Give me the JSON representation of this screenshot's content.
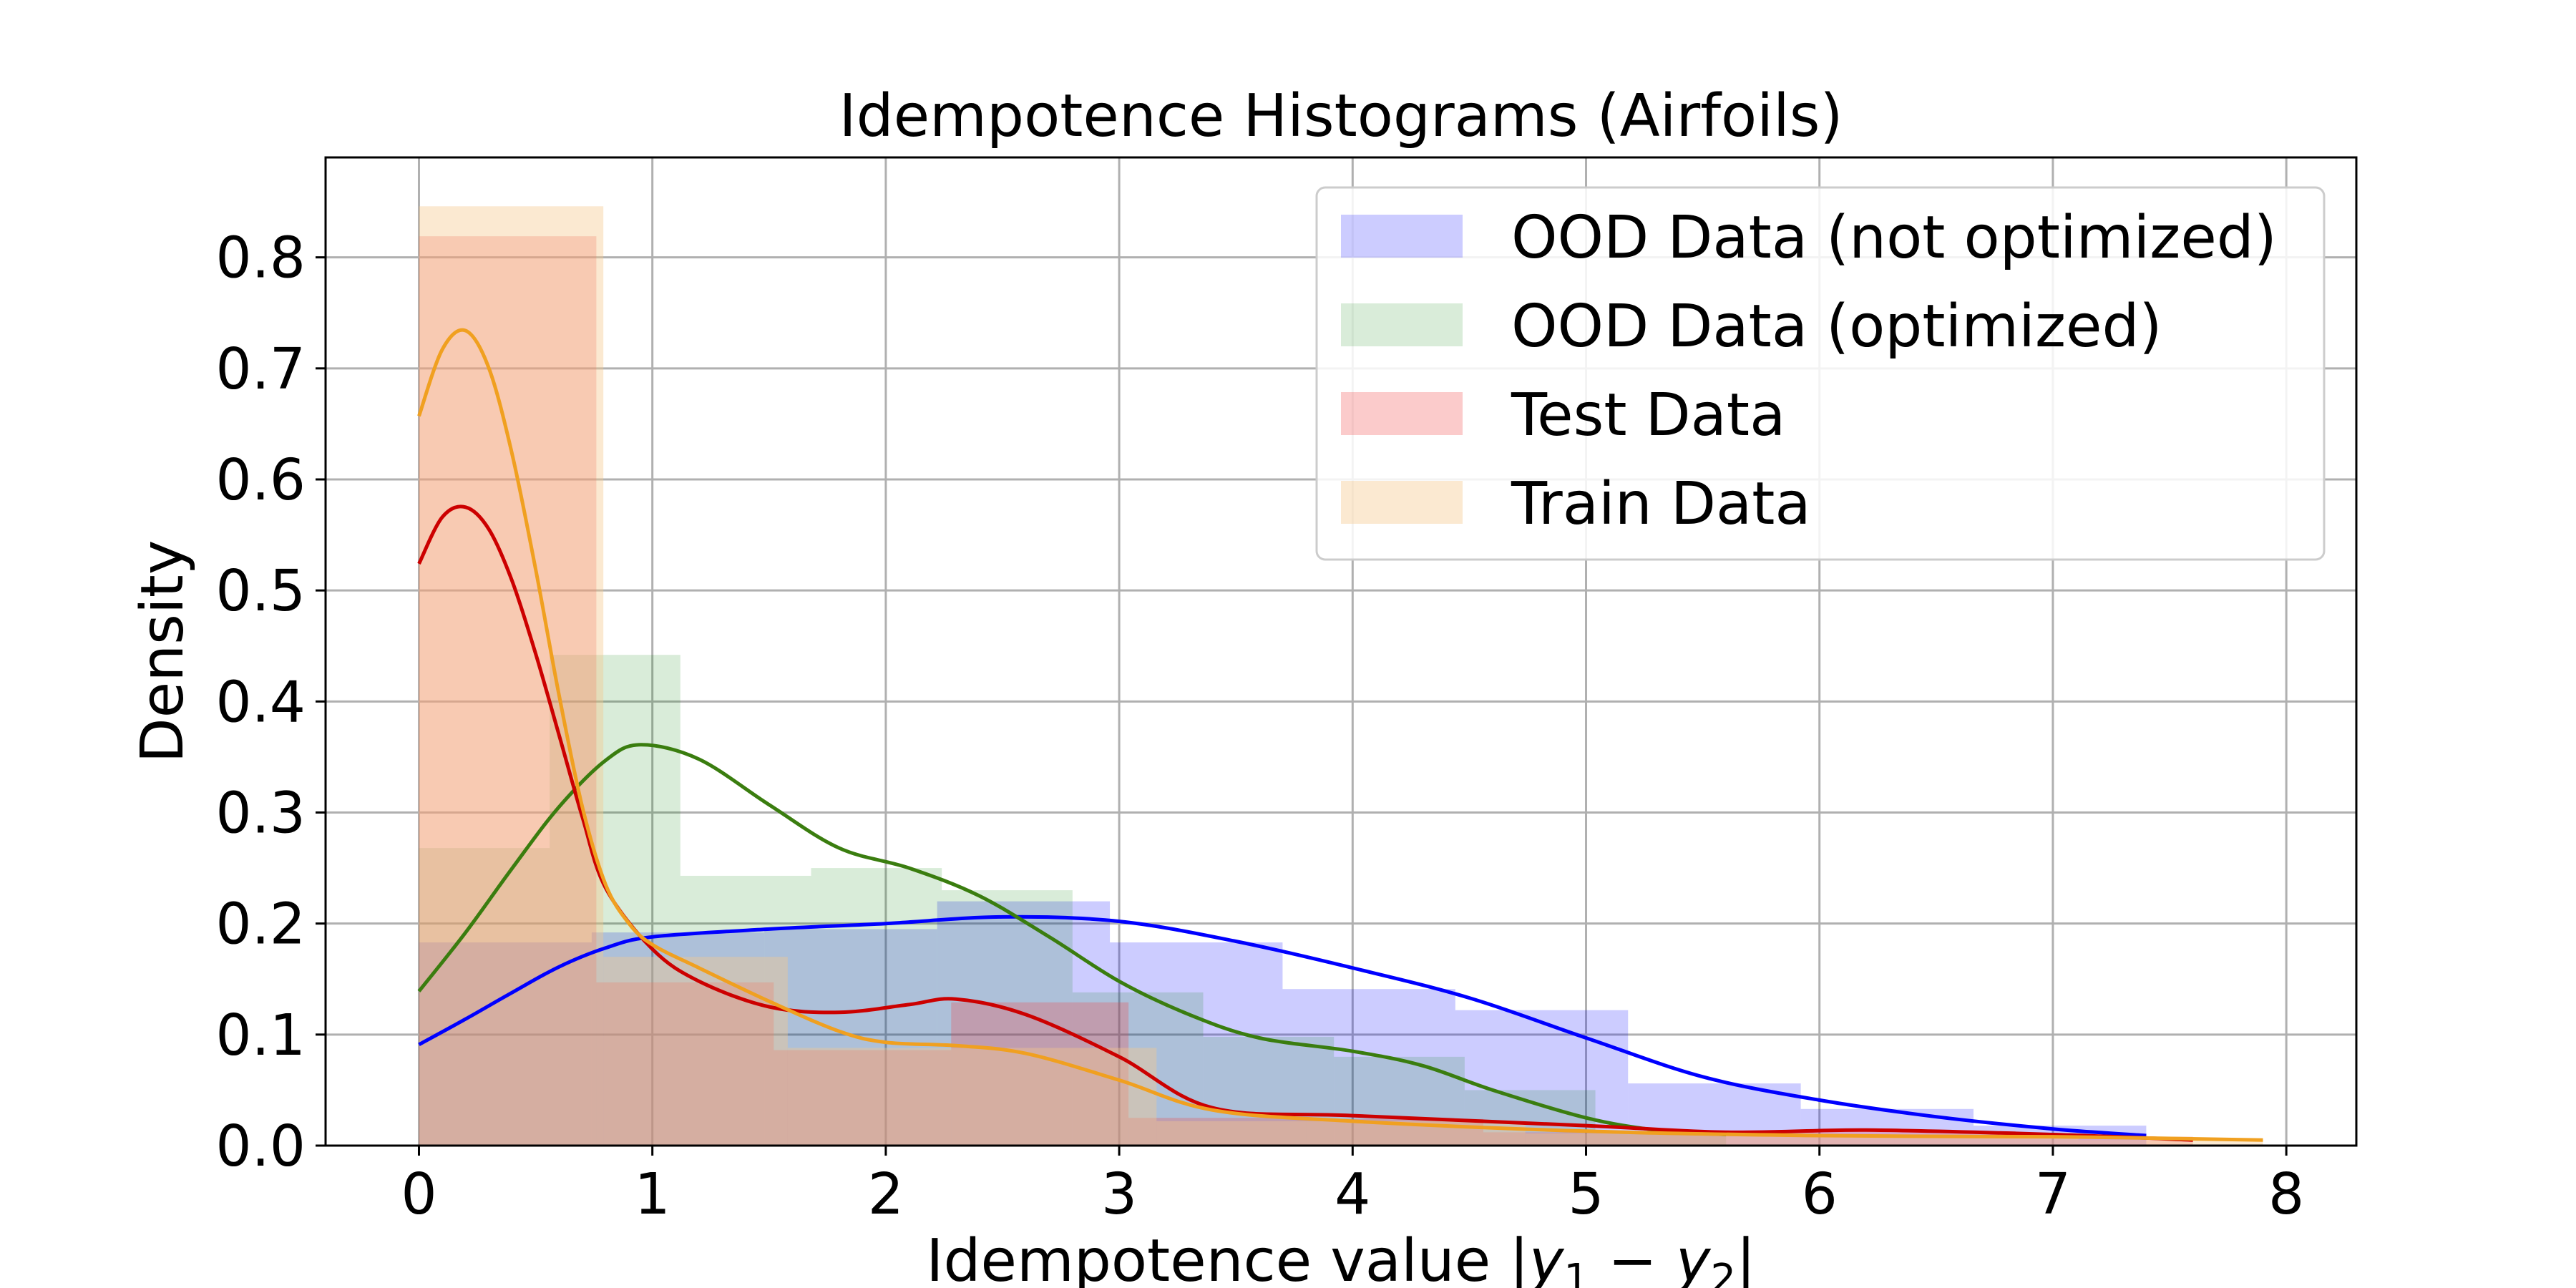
{
  "chart_data": {
    "type": "histogram",
    "title": "Idempotence Histograms (Airfoils)",
    "xlabel": "Idempotence value |y₁ − y₂|",
    "ylabel": "Density",
    "xlim": [
      -0.4,
      8.3
    ],
    "ylim": [
      0.0,
      0.89
    ],
    "x_ticks": [
      "0",
      "1",
      "2",
      "3",
      "4",
      "5",
      "6",
      "7",
      "8"
    ],
    "y_ticks": [
      "0.0",
      "0.1",
      "0.2",
      "0.3",
      "0.4",
      "0.5",
      "0.6",
      "0.7",
      "0.8"
    ],
    "grid": true,
    "legend_position": "top-right",
    "series": [
      {
        "name": "OOD Data (not optimized)",
        "color": "#0000ff",
        "fill": "rgba(0,0,255,0.2)",
        "bin_edges": [
          0.0,
          0.74,
          1.48,
          2.22,
          2.96,
          3.7,
          4.44,
          5.18,
          5.92,
          6.66,
          7.4
        ],
        "bin_values": [
          0.183,
          0.192,
          0.195,
          0.22,
          0.183,
          0.141,
          0.122,
          0.056,
          0.033,
          0.018
        ],
        "kde_x": [
          0.0,
          0.2,
          0.4,
          0.6,
          0.8,
          1.0,
          1.5,
          2.0,
          2.5,
          3.0,
          3.5,
          4.0,
          4.5,
          5.0,
          5.5,
          6.0,
          6.5,
          7.0,
          7.4
        ],
        "kde_y": [
          0.091,
          0.114,
          0.138,
          0.161,
          0.178,
          0.188,
          0.195,
          0.2,
          0.206,
          0.202,
          0.184,
          0.16,
          0.133,
          0.097,
          0.062,
          0.041,
          0.026,
          0.015,
          0.009
        ]
      },
      {
        "name": "OOD Data (optimized)",
        "color": "#3a7d0f",
        "fill": "rgba(0,128,0,0.15)",
        "bin_edges": [
          0.0,
          0.56,
          1.12,
          1.68,
          2.24,
          2.8,
          3.36,
          3.92,
          4.48,
          5.04,
          5.6
        ],
        "bin_values": [
          0.268,
          0.442,
          0.243,
          0.25,
          0.23,
          0.138,
          0.098,
          0.08,
          0.05,
          0.012
        ],
        "kde_x": [
          0.0,
          0.2,
          0.4,
          0.6,
          0.8,
          0.95,
          1.2,
          1.5,
          1.8,
          2.1,
          2.4,
          2.7,
          3.0,
          3.3,
          3.6,
          4.0,
          4.3,
          4.6,
          5.0,
          5.3,
          5.6
        ],
        "kde_y": [
          0.139,
          0.192,
          0.25,
          0.305,
          0.347,
          0.361,
          0.348,
          0.307,
          0.268,
          0.25,
          0.225,
          0.188,
          0.148,
          0.118,
          0.097,
          0.085,
          0.072,
          0.05,
          0.025,
          0.014,
          0.01
        ]
      },
      {
        "name": "Test Data",
        "color": "#cc0000",
        "fill": "rgba(240,70,70,0.28)",
        "bin_edges": [
          0.0,
          0.76,
          1.52,
          2.28,
          3.04,
          3.8,
          4.56,
          5.32,
          6.08,
          6.84,
          7.6
        ],
        "bin_values": [
          0.819,
          0.147,
          0.086,
          0.129,
          0.025,
          0.024,
          0.012,
          0.014,
          0.013,
          0.008
        ],
        "kde_x": [
          0.0,
          0.1,
          0.2,
          0.3,
          0.4,
          0.5,
          0.6,
          0.7,
          0.8,
          1.0,
          1.2,
          1.5,
          1.8,
          2.1,
          2.3,
          2.6,
          3.0,
          3.4,
          4.0,
          5.0,
          5.6,
          6.2,
          7.0,
          7.6
        ],
        "kde_y": [
          0.524,
          0.566,
          0.575,
          0.555,
          0.508,
          0.443,
          0.37,
          0.296,
          0.232,
          0.177,
          0.148,
          0.125,
          0.12,
          0.127,
          0.132,
          0.118,
          0.08,
          0.034,
          0.027,
          0.018,
          0.012,
          0.014,
          0.01,
          0.005
        ]
      },
      {
        "name": "Train Data",
        "color": "#f0a020",
        "fill": "rgba(245,200,140,0.4)",
        "bin_edges": [
          0.0,
          0.79,
          1.58,
          2.37,
          3.16,
          3.95,
          4.74,
          5.53,
          6.32,
          7.11,
          7.9
        ],
        "bin_values": [
          0.846,
          0.17,
          0.088,
          0.088,
          0.022,
          0.022,
          0.011,
          0.009,
          0.007,
          0.005
        ],
        "kde_x": [
          0.0,
          0.1,
          0.2,
          0.3,
          0.4,
          0.5,
          0.6,
          0.7,
          0.8,
          0.9,
          1.0,
          1.2,
          1.5,
          1.8,
          2.0,
          2.3,
          2.6,
          3.0,
          3.4,
          4.0,
          5.0,
          6.0,
          7.0,
          7.9
        ],
        "kde_y": [
          0.657,
          0.717,
          0.734,
          0.7,
          0.622,
          0.519,
          0.406,
          0.305,
          0.235,
          0.2,
          0.181,
          0.16,
          0.13,
          0.103,
          0.093,
          0.09,
          0.083,
          0.059,
          0.032,
          0.022,
          0.013,
          0.009,
          0.008,
          0.005
        ]
      }
    ]
  }
}
